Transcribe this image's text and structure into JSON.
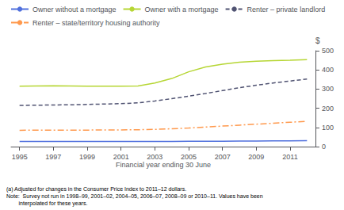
{
  "chart_data": {
    "type": "line",
    "x": [
      1995,
      1996,
      1997,
      1998,
      1999,
      2000,
      2001,
      2002,
      2003,
      2004,
      2005,
      2006,
      2007,
      2008,
      2009,
      2010,
      2011,
      2012
    ],
    "series": [
      {
        "name": "Owner without a mortgage",
        "line_style": "solid",
        "values": [
          27,
          27,
          27,
          27,
          27,
          27,
          27,
          27,
          27,
          27,
          28,
          28,
          28,
          29,
          29,
          30,
          30,
          31
        ]
      },
      {
        "name": "Owner with a mortgage",
        "line_style": "solid",
        "values": [
          315,
          316,
          317,
          316,
          315,
          315,
          315,
          316,
          332,
          355,
          390,
          415,
          430,
          440,
          445,
          448,
          450,
          453
        ]
      },
      {
        "name": "Renter – private landlord",
        "line_style": "dashed",
        "values": [
          215,
          216,
          217,
          218,
          220,
          222,
          224,
          228,
          238,
          250,
          263,
          277,
          292,
          307,
          320,
          332,
          342,
          352
        ]
      },
      {
        "name": "Renter – state/territory housing authority",
        "line_style": "dashdot",
        "values": [
          85,
          86,
          86,
          86,
          86,
          87,
          87,
          88,
          90,
          93,
          97,
          102,
          107,
          112,
          117,
          122,
          127,
          132
        ]
      }
    ],
    "xlabel": "Financial year ending 30 June",
    "ylabel": "$",
    "xlim": [
      1994.5,
      2012.5
    ],
    "xticks": [
      1995,
      1997,
      1999,
      2001,
      2003,
      2005,
      2007,
      2009,
      2011
    ],
    "ylim": [
      0,
      500
    ],
    "yticks": [
      0,
      100,
      200,
      300,
      400,
      500
    ],
    "grid": false,
    "legend": "upper left",
    "annotations": [
      "(a) Adjusted for changes in the Consumer Price Index to 2011–12 dollars.",
      "Note:  Survey not run in 1998–99, 2001–02, 2004–05, 2006–07, 2008–09 or 2010–11. Values have been\n        interpolated for these years."
    ]
  }
}
